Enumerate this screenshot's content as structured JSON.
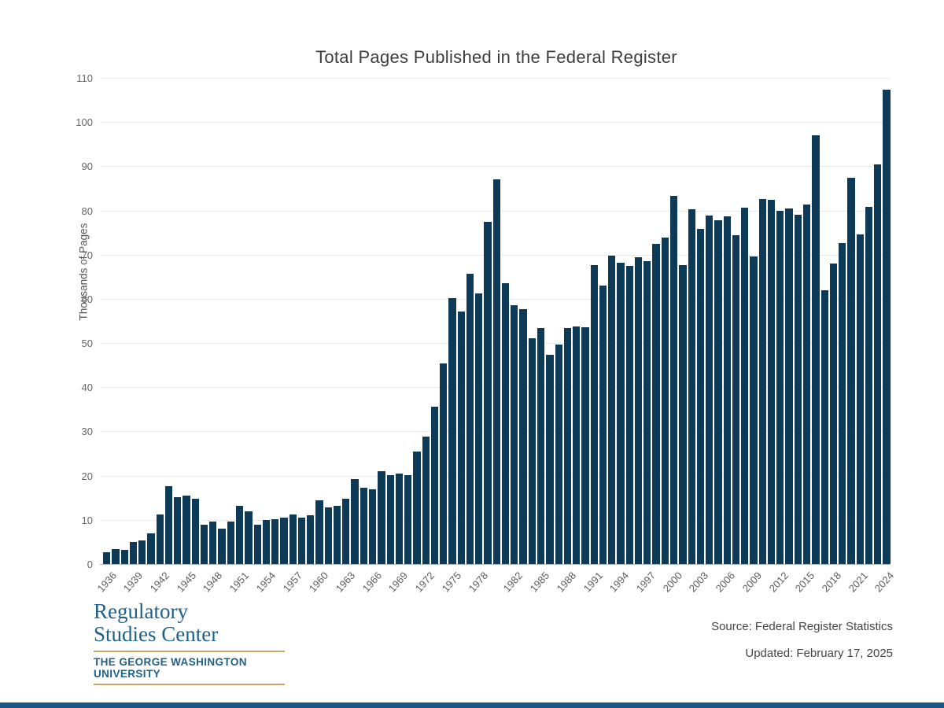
{
  "title": "Total Pages Published in the Federal Register",
  "y_axis_title": "Thousands of Pages",
  "footer": {
    "source_line": "Source: Federal Register Statistics",
    "updated_line": "Updated: February 17, 2025"
  },
  "logo": {
    "line1": "Regulatory",
    "line2": "Studies Center",
    "line3": "THE GEORGE WASHINGTON UNIVERSITY"
  },
  "colors": {
    "bar": "#0d3a56",
    "logo_blue": "#20618a",
    "logo_buff": "#c9a567",
    "grid": "#e9e9e9",
    "footer_strip": "#1d5586"
  },
  "chart_data": {
    "type": "bar",
    "title": "Total Pages Published in the Federal Register",
    "ylabel": "Thousands of Pages",
    "ylim": [
      0,
      110
    ],
    "y_ticks": [
      0,
      10,
      20,
      30,
      40,
      50,
      60,
      70,
      80,
      90,
      100,
      110
    ],
    "grid": true,
    "x_start_year": 1936,
    "x": [
      1936,
      1937,
      1938,
      1939,
      1940,
      1941,
      1942,
      1943,
      1944,
      1945,
      1946,
      1947,
      1948,
      1949,
      1950,
      1951,
      1952,
      1953,
      1954,
      1955,
      1956,
      1957,
      1958,
      1959,
      1960,
      1961,
      1962,
      1963,
      1964,
      1965,
      1966,
      1967,
      1968,
      1969,
      1970,
      1971,
      1972,
      1973,
      1974,
      1975,
      1976,
      1977,
      1978,
      1979,
      1980,
      1981,
      1982,
      1983,
      1984,
      1985,
      1986,
      1987,
      1988,
      1989,
      1990,
      1991,
      1992,
      1993,
      1994,
      1995,
      1996,
      1997,
      1998,
      1999,
      2000,
      2001,
      2002,
      2003,
      2004,
      2005,
      2006,
      2007,
      2008,
      2009,
      2010,
      2011,
      2012,
      2013,
      2014,
      2015,
      2016,
      2017,
      2018,
      2019,
      2020,
      2021,
      2022,
      2023,
      2024
    ],
    "values": [
      2.62,
      3.45,
      3.19,
      5.01,
      5.31,
      6.88,
      11.13,
      17.55,
      15.19,
      15.51,
      14.74,
      8.9,
      9.61,
      7.95,
      9.56,
      13.18,
      11.9,
      8.91,
      9.91,
      10.2,
      10.53,
      11.16,
      10.58,
      11.12,
      14.48,
      12.79,
      13.23,
      14.84,
      19.3,
      17.21,
      16.85,
      21.09,
      20.07,
      20.46,
      20.04,
      25.44,
      28.92,
      35.59,
      45.42,
      60.22,
      57.07,
      65.6,
      61.26,
      77.5,
      87.01,
      63.55,
      58.49,
      57.7,
      51.0,
      53.48,
      47.42,
      49.65,
      53.38,
      53.84,
      53.62,
      67.72,
      62.93,
      69.69,
      68.11,
      67.52,
      69.37,
      68.53,
      72.36,
      73.88,
      83.29,
      67.7,
      80.33,
      75.8,
      78.85,
      77.75,
      78.72,
      74.41,
      80.7,
      69.68,
      82.59,
      82.42,
      79.9,
      80.46,
      78.98,
      81.4,
      97.07,
      61.95,
      68.08,
      72.56,
      87.35,
      74.53,
      80.76,
      90.4,
      107.26
    ],
    "x_tick_labels": [
      "1936",
      "1939",
      "1942",
      "1945",
      "1948",
      "1951",
      "1954",
      "1957",
      "1960",
      "1963",
      "1966",
      "1969",
      "1972",
      "1975",
      "1978",
      "1982",
      "1985",
      "1988",
      "1991",
      "1994",
      "1997",
      "2000",
      "2003",
      "2006",
      "2009",
      "2012",
      "2015",
      "2018",
      "2021",
      "2024"
    ],
    "legend": null
  }
}
